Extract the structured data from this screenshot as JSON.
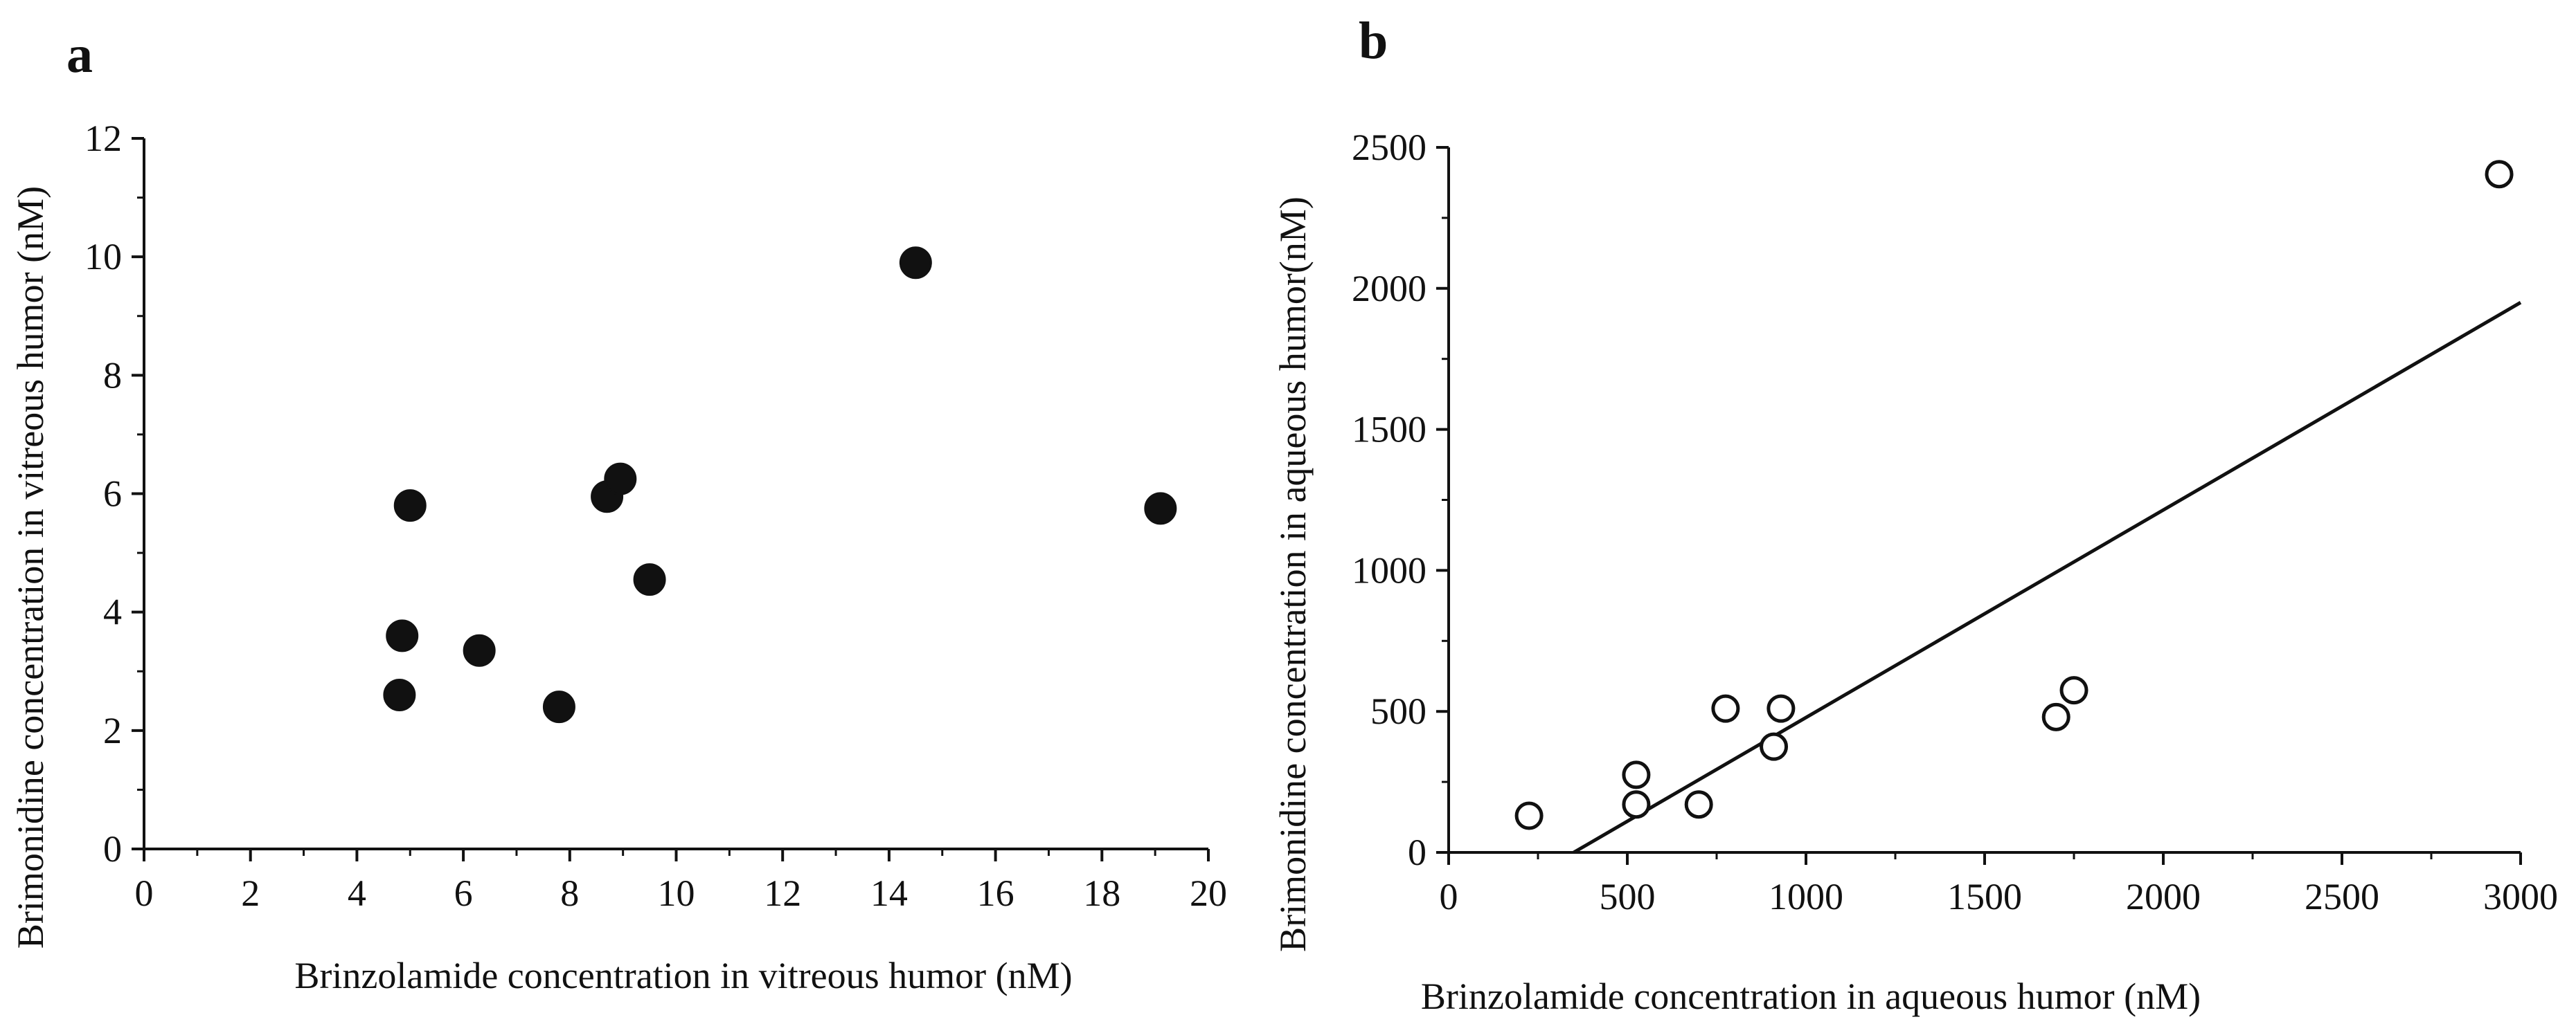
{
  "figure": {
    "panel_labels": [
      "a",
      "b"
    ]
  },
  "colors": {
    "ink": "#111111",
    "background": "#ffffff"
  },
  "chart_data": [
    {
      "type": "scatter",
      "panel": "a",
      "xlabel": "Brinzolamide concentration in vitreous humor (nM)",
      "ylabel": "Brimonidine concentration in vitreous humor (nM)",
      "xlim": [
        0,
        20
      ],
      "ylim": [
        0,
        12
      ],
      "xticks": [
        0,
        2,
        4,
        6,
        8,
        10,
        12,
        14,
        16,
        18,
        20
      ],
      "yticks": [
        0,
        2,
        4,
        6,
        8,
        10,
        12
      ],
      "marker": "filled-circle",
      "points": [
        {
          "x": 4.8,
          "y": 2.6
        },
        {
          "x": 4.85,
          "y": 3.6
        },
        {
          "x": 5.0,
          "y": 5.8
        },
        {
          "x": 6.3,
          "y": 3.35
        },
        {
          "x": 7.8,
          "y": 2.4
        },
        {
          "x": 8.7,
          "y": 5.95
        },
        {
          "x": 8.95,
          "y": 6.25
        },
        {
          "x": 9.5,
          "y": 4.55
        },
        {
          "x": 14.5,
          "y": 9.9
        },
        {
          "x": 19.1,
          "y": 5.75
        }
      ]
    },
    {
      "type": "scatter",
      "panel": "b",
      "xlabel": "Brinzolamide concentration in aqueous humor (nM)",
      "ylabel": "Brimonidine concentration in aqueous humor(nM)",
      "xlim": [
        0,
        3000
      ],
      "ylim": [
        0,
        2500
      ],
      "xticks": [
        0,
        500,
        1000,
        1500,
        2000,
        2500,
        3000
      ],
      "yticks": [
        0,
        500,
        1000,
        1500,
        2000,
        2500
      ],
      "marker": "open-circle",
      "points": [
        {
          "x": 225,
          "y": 130
        },
        {
          "x": 525,
          "y": 275
        },
        {
          "x": 525,
          "y": 170
        },
        {
          "x": 700,
          "y": 170
        },
        {
          "x": 775,
          "y": 510
        },
        {
          "x": 910,
          "y": 375
        },
        {
          "x": 930,
          "y": 510
        },
        {
          "x": 1700,
          "y": 480
        },
        {
          "x": 1750,
          "y": 575
        },
        {
          "x": 2940,
          "y": 2405
        }
      ],
      "fit_line": {
        "x1": 350,
        "y1": 0,
        "x2": 3000,
        "y2": 1950
      }
    }
  ]
}
